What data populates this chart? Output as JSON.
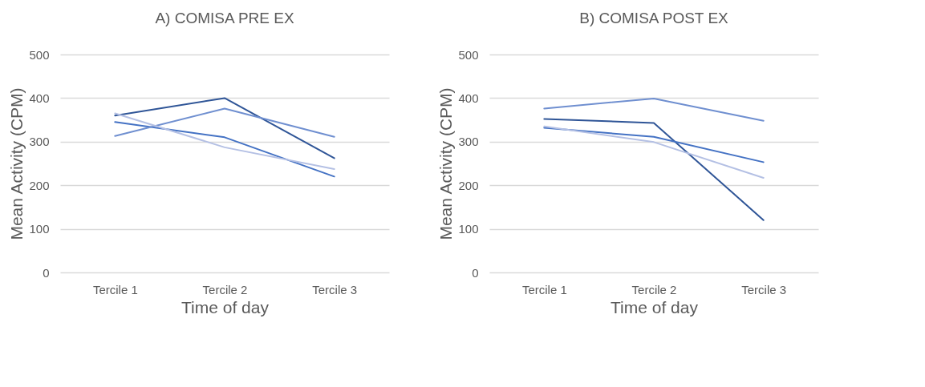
{
  "chart_data": [
    {
      "type": "line",
      "title": "A) COMISA PRE EX",
      "xlabel": "Time of day",
      "ylabel": "Mean Activity (CPM)",
      "categories": [
        "Tercile 1",
        "Tercile 2",
        "Tercile 3"
      ],
      "ylim": [
        0,
        500
      ],
      "yticks": [
        0,
        100,
        200,
        300,
        400,
        500
      ],
      "grid": "y",
      "legend": false,
      "marker": "none",
      "line_style": "solid",
      "series": [
        {
          "color": "#2f5597",
          "values": [
            360,
            400,
            262
          ]
        },
        {
          "color": "#4472c4",
          "values": [
            345,
            310,
            220
          ]
        },
        {
          "color": "#6f8fd0",
          "values": [
            313,
            376,
            311
          ]
        },
        {
          "color": "#b4c0e4",
          "values": [
            365,
            287,
            237
          ]
        }
      ]
    },
    {
      "type": "line",
      "title": "B) COMISA POST EX",
      "xlabel": "Time of day",
      "ylabel": "Mean Activity (CPM)",
      "categories": [
        "Tercile 1",
        "Tercile 2",
        "Tercile 3"
      ],
      "ylim": [
        0,
        500
      ],
      "yticks": [
        0,
        100,
        200,
        300,
        400,
        500
      ],
      "grid": "y",
      "legend": false,
      "marker": "none",
      "line_style": "solid",
      "series": [
        {
          "color": "#2f5597",
          "values": [
            352,
            343,
            120
          ]
        },
        {
          "color": "#4472c4",
          "values": [
            332,
            311,
            253
          ]
        },
        {
          "color": "#6f8fd0",
          "values": [
            376,
            399,
            348
          ]
        },
        {
          "color": "#b4c0e4",
          "values": [
            335,
            299,
            217
          ]
        }
      ]
    }
  ]
}
